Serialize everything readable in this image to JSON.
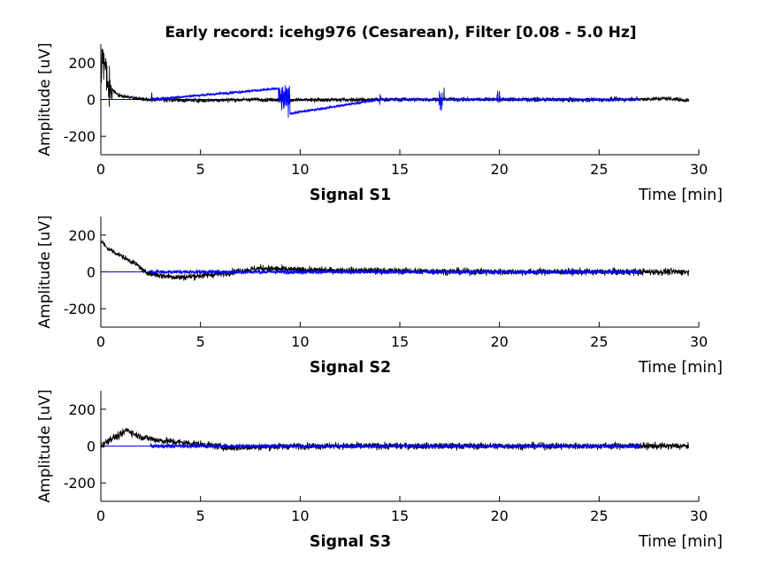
{
  "chart_data": {
    "type": "line",
    "title": "Early record: icehg976 (Cesarean), Filter [0.08 - 5.0 Hz]",
    "colors": {
      "raw": "#000000",
      "filtered": "#0000ff",
      "zero_line": "#0000ff"
    },
    "subplots": [
      {
        "label": "Signal S1",
        "xlabel": "Time [min]",
        "ylabel": "Amplitude [uV]",
        "xlim": [
          0,
          30
        ],
        "ylim": [
          -300,
          300
        ],
        "xticks": [
          "0",
          "5",
          "10",
          "15",
          "20",
          "25",
          "30"
        ],
        "yticks": [
          "200",
          "0",
          "-200"
        ],
        "grid": false,
        "series": [
          {
            "style": "raw-black",
            "x": [
              0,
              0.1,
              0.2,
              0.3,
              0.5,
              0.8,
              1.2,
              1.8,
              2.5,
              5,
              8,
              10,
              15,
              20,
              25,
              28.5,
              29.5
            ],
            "y": [
              50,
              280,
              200,
              90,
              60,
              30,
              15,
              5,
              0,
              -5,
              0,
              -3,
              0,
              0,
              -2,
              5,
              -5
            ]
          },
          {
            "style": "filtered-blue",
            "x": [
              2.5,
              9.0,
              9.1,
              9.2,
              9.3,
              14,
              17,
              20,
              27.1
            ],
            "y": [
              0,
              60,
              -90,
              140,
              -80,
              0,
              0,
              0,
              0
            ]
          }
        ]
      },
      {
        "label": "Signal S2",
        "xlabel": "Time [min]",
        "ylabel": "Amplitude [uV]",
        "xlim": [
          0,
          30
        ],
        "ylim": [
          -300,
          300
        ],
        "xticks": [
          "0",
          "5",
          "10",
          "15",
          "20",
          "25",
          "30"
        ],
        "yticks": [
          "200",
          "0",
          "-200"
        ],
        "grid": false,
        "series": [
          {
            "style": "raw-black",
            "x": [
              0,
              0.3,
              0.8,
              1.3,
              1.8,
              2.2,
              3,
              4,
              6,
              8,
              10,
              15,
              20,
              25,
              29.5
            ],
            "y": [
              170,
              130,
              100,
              70,
              40,
              0,
              -20,
              -30,
              -10,
              20,
              10,
              5,
              0,
              0,
              0
            ]
          },
          {
            "style": "filtered-blue",
            "x": [
              2.5,
              27.1
            ],
            "y": [
              0,
              0
            ]
          }
        ]
      },
      {
        "label": "Signal S3",
        "xlabel": "Time [min]",
        "ylabel": "Amplitude [uV]",
        "xlim": [
          0,
          30
        ],
        "ylim": [
          -300,
          300
        ],
        "xticks": [
          "0",
          "5",
          "10",
          "15",
          "20",
          "25",
          "30"
        ],
        "yticks": [
          "200",
          "0",
          "-200"
        ],
        "grid": false,
        "series": [
          {
            "style": "raw-black",
            "x": [
              0,
              0.5,
              1.0,
              1.3,
              1.6,
              2.0,
              3,
              4,
              5,
              6.5,
              8,
              10,
              15,
              20,
              25,
              29.5
            ],
            "y": [
              0,
              40,
              60,
              90,
              70,
              50,
              30,
              20,
              10,
              -10,
              -5,
              0,
              0,
              0,
              0,
              0
            ]
          },
          {
            "style": "filtered-blue",
            "x": [
              2.5,
              27.1
            ],
            "y": [
              0,
              0
            ]
          }
        ]
      }
    ]
  }
}
